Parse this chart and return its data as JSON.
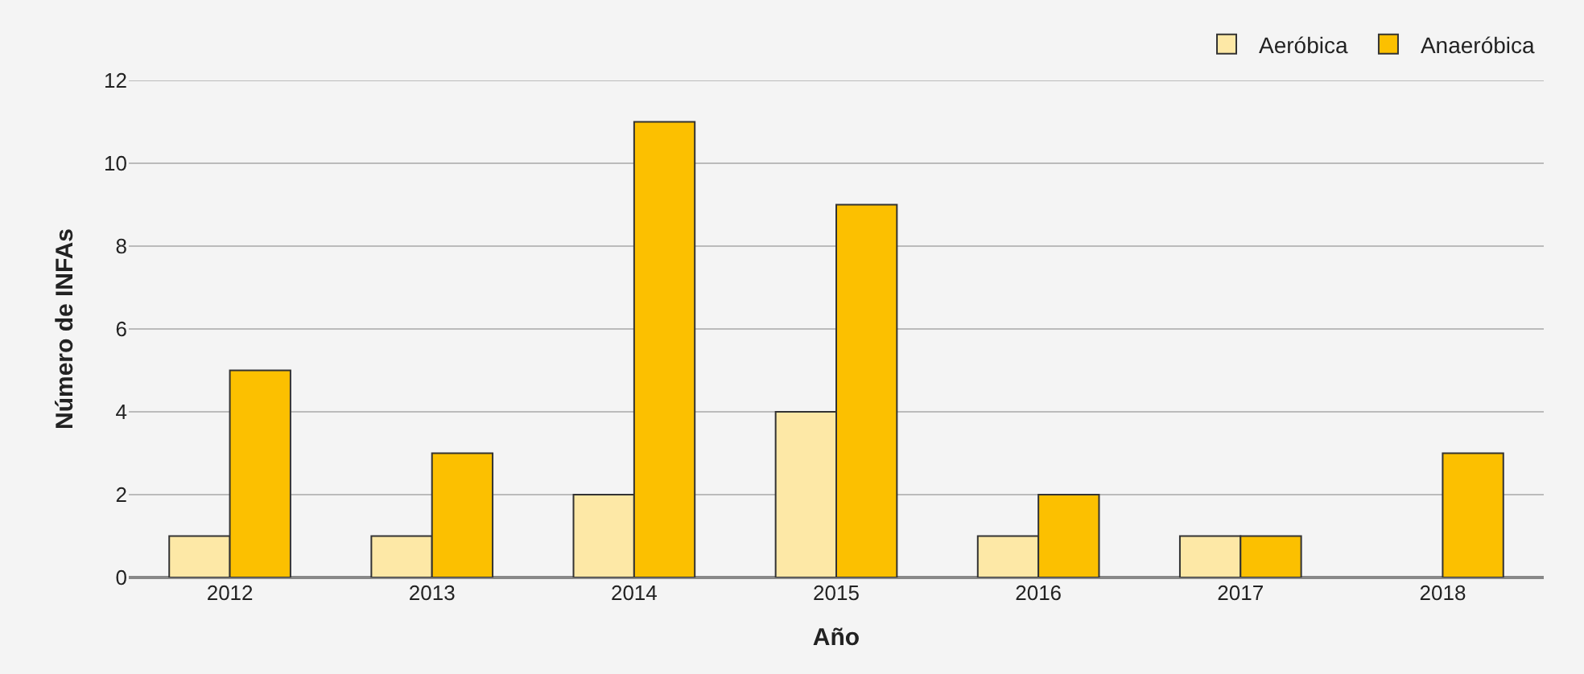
{
  "chart_data": {
    "type": "bar",
    "xlabel": "Año",
    "ylabel": "Número de INFAs",
    "categories": [
      "2012",
      "2013",
      "2014",
      "2015",
      "2016",
      "2017",
      "2018"
    ],
    "series": [
      {
        "name": "Aeróbica",
        "color": "#fde8a6",
        "values": [
          1,
          1,
          2,
          4,
          1,
          1,
          null
        ]
      },
      {
        "name": "Anaeróbica",
        "color": "#fcc000",
        "values": [
          5,
          3,
          11,
          9,
          2,
          1,
          3
        ]
      }
    ],
    "ylim": [
      0,
      12
    ],
    "yticks": [
      0,
      2,
      4,
      6,
      8,
      10,
      12
    ],
    "grid": "y",
    "legend": "top right"
  }
}
